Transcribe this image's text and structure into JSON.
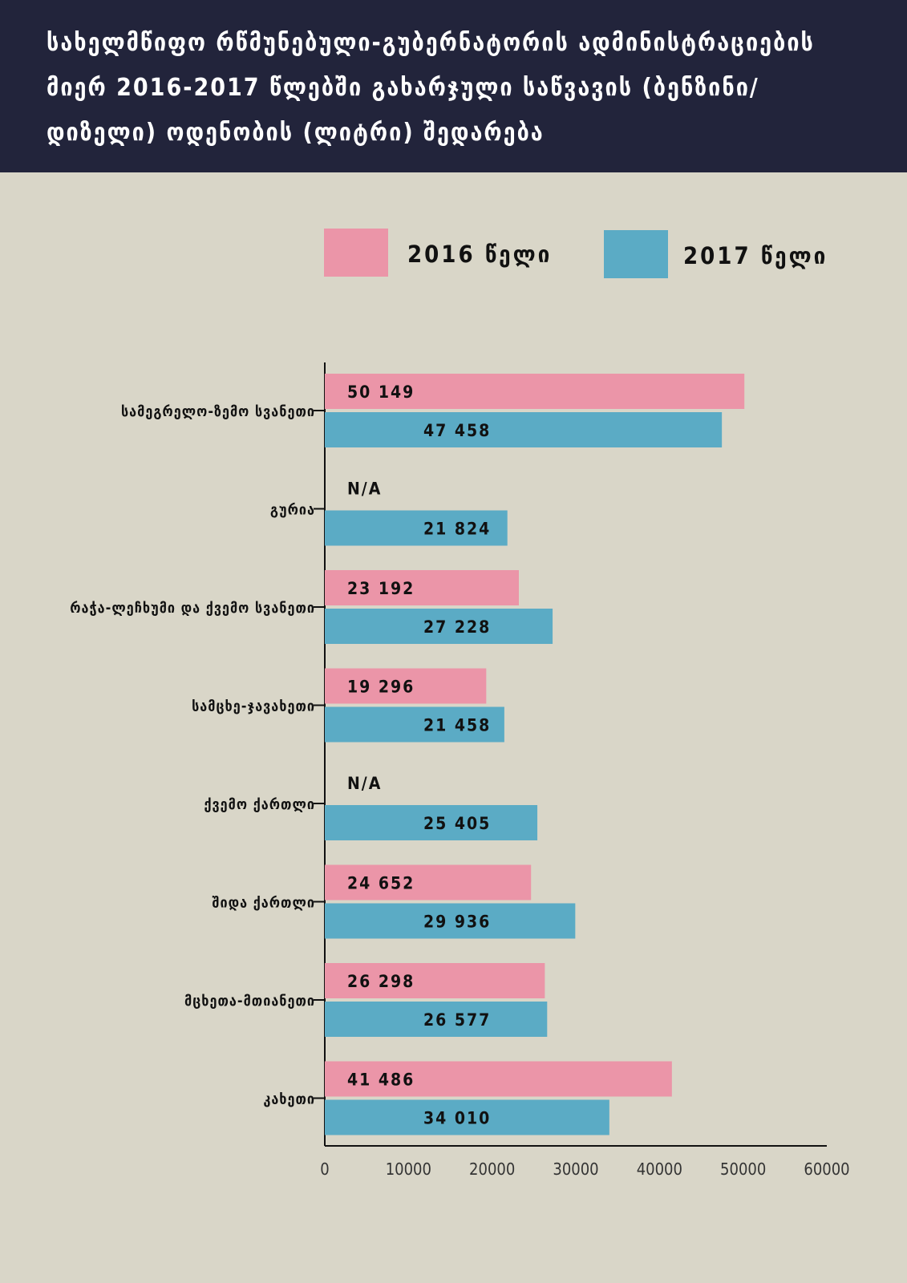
{
  "title": "სახელმწიფო რწმუნებული-გუბერნატორის ადმინისტრაციების მიერ 2016-2017 წლებში გახარჯული საწვავის (ბენზინი/დიზელი) ოდენობის (ლიტრი) შედარება",
  "legend": {
    "s2016": "2016 წელი",
    "s2017": "2017 წელი"
  },
  "colors": {
    "s2016": "#eb95a8",
    "s2017": "#5babc5",
    "background": "#d9d6c8",
    "header": "#22243b"
  },
  "chart_data": {
    "type": "bar",
    "orientation": "horizontal",
    "title": "სახელმწიფო რწმუნებული-გუბერნატორის ადმინისტრაციების მიერ 2016-2017 წლებში გახარჯული საწვავის (ბენზინი/დიზელი) ოდენობის (ლიტრი) შედარება",
    "categories": [
      "სამეგრელო-ზემო სვანეთი",
      "გურია",
      "რაჭა-ლეჩხუმი და ქვემო სვანეთი",
      "სამცხე-ჯავახეთი",
      "ქვემო ქართლი",
      "შიდა ქართლი",
      "მცხეთა-მთიანეთი",
      "კახეთი"
    ],
    "series": [
      {
        "name": "2016 წელი",
        "values": [
          50149,
          null,
          23192,
          19296,
          null,
          24652,
          26298,
          41486
        ],
        "labels": [
          "50 149",
          "N/A",
          "23 192",
          "19 296",
          "N/A",
          "24 652",
          "26 298",
          "41 486"
        ]
      },
      {
        "name": "2017 წელი",
        "values": [
          47458,
          21824,
          27228,
          21458,
          25405,
          29936,
          26577,
          34010
        ],
        "labels": [
          "47 458",
          "21 824",
          "27 228",
          "21 458",
          "25 405",
          "29 936",
          "26 577",
          "34 010"
        ]
      }
    ],
    "xlim": [
      0,
      60000
    ],
    "xticks": [
      0,
      10000,
      20000,
      30000,
      40000,
      50000,
      60000
    ],
    "xtick_labels": [
      "0",
      "10000",
      "20000",
      "30000",
      "40000",
      "50000",
      "60000"
    ],
    "xlabel": "",
    "ylabel": "",
    "legend_position": "top"
  }
}
